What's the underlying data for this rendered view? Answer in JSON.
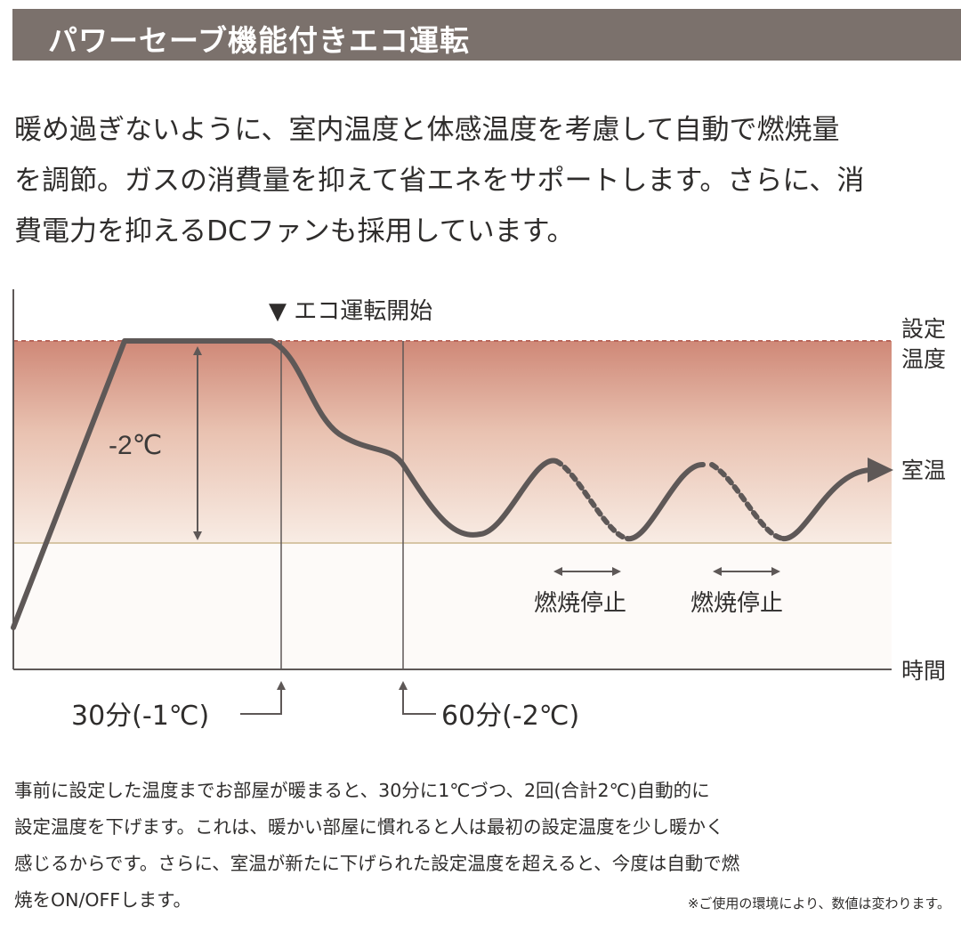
{
  "title": "パワーセーブ機能付きエコ運転",
  "intro_lines": [
    "暖め過ぎないように、室内温度と体感温度を考慮して自動で燃焼量",
    "を調節。ガスの消費量を抑えて省エネをサポートします。さらに、消",
    "費電力を抑えるDCファンも採用しています。"
  ],
  "diagram": {
    "eco_start_label": "▼ エコ運転開始",
    "setpoint_label": [
      "設定",
      "温度"
    ],
    "room_temp_label": "室温",
    "time_label": "時間",
    "delta_label": "-2℃",
    "stop_label_1": "燃焼停止",
    "stop_label_2": "燃焼停止",
    "marker_30": "30分(-1℃)",
    "marker_60": "60分(-2℃)",
    "colors": {
      "band_top": "#cf8877",
      "band_mid": "#e9c2b1",
      "band_bottom": "#f8ece4",
      "curve": "#5e5857",
      "setpoint_dash": "#b6655a",
      "baseline": "#d7c5a6"
    }
  },
  "caption_lines": [
    "事前に設定した温度までお部屋が暖まると、30分に1℃づつ、2回(合計2℃)自動的に",
    "設定温度を下げます。これは、暖かい部屋に慣れると人は最初の設定温度を少し暖かく",
    "感じるからです。さらに、室温が新たに下げられた設定温度を超えると、今度は自動で燃",
    "焼をON/OFFします。"
  ],
  "note": "※ご使用の環境により、数値は変わります。"
}
